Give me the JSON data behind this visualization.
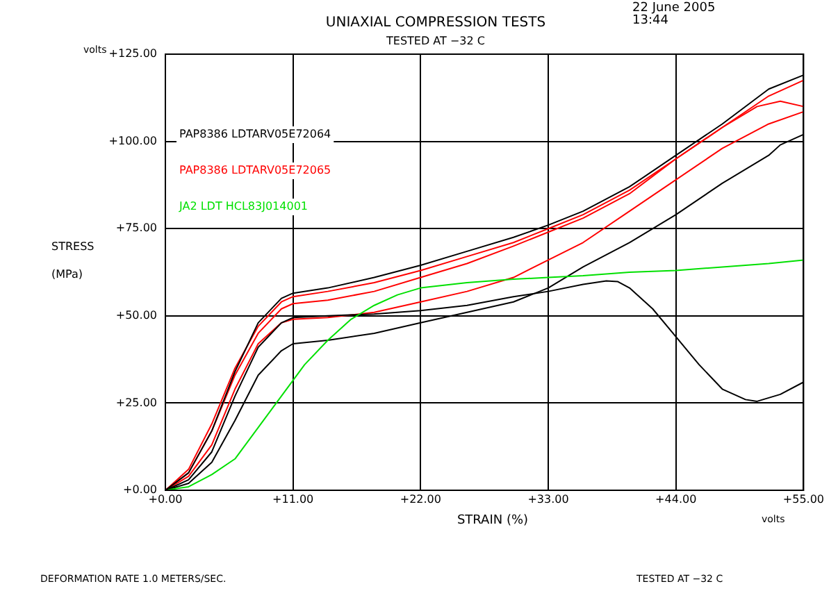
{
  "chart_data": {
    "type": "line",
    "title": "UNIAXIAL COMPRESSION TESTS",
    "subtitle": "TESTED AT −32 C",
    "xlabel": "STRAIN (%)",
    "ylabel": "STRESS (MPa)",
    "annotations": [
      "22 June 2005",
      "13:44",
      "volts",
      "volts",
      "DEFORMATION RATE 1.0 METERS/SEC.",
      "TESTED AT −32 C"
    ],
    "xlim": [
      0,
      55
    ],
    "ylim": [
      0,
      125
    ],
    "xticks": [
      {
        "value": 0,
        "label": "+0.00"
      },
      {
        "value": 11,
        "label": "+11.00"
      },
      {
        "value": 22,
        "label": "+22.00"
      },
      {
        "value": 33,
        "label": "+33.00"
      },
      {
        "value": 44,
        "label": "+44.00"
      },
      {
        "value": 55,
        "label": "+55.00"
      }
    ],
    "yticks": [
      {
        "value": 0,
        "label": "+0.00"
      },
      {
        "value": 25,
        "label": "+25.00"
      },
      {
        "value": 50,
        "label": "+50.00"
      },
      {
        "value": 75,
        "label": "+75.00"
      },
      {
        "value": 100,
        "label": "+100.00"
      },
      {
        "value": 125,
        "label": "+125.00"
      }
    ],
    "grid": true,
    "legend": "top left",
    "marker": "none",
    "line_style": "solid",
    "series": [
      {
        "name": "PAP8386 LDTARV05E72064",
        "color": "#000000",
        "x": [
          0,
          2,
          4,
          6,
          8,
          10,
          11,
          14,
          18,
          22,
          26,
          30,
          33,
          36,
          40,
          44,
          48,
          52,
          55
        ],
        "values": [
          0,
          5,
          17,
          34,
          48,
          55,
          56.5,
          58,
          61,
          64.5,
          68.5,
          72.5,
          76,
          80,
          87,
          96,
          105,
          115,
          119
        ]
      },
      {
        "name": "PAP8386 LDTARV05E72065",
        "color": "#ff0000",
        "x": [
          0,
          2,
          4,
          6,
          8,
          10,
          11,
          14,
          18,
          22,
          26,
          30,
          33,
          36,
          40,
          44,
          48,
          52,
          55
        ],
        "values": [
          0,
          6,
          19,
          35,
          47,
          54,
          55.5,
          57,
          59.5,
          63,
          67,
          71,
          75,
          79,
          86,
          95,
          104,
          113,
          117.5
        ]
      },
      {
        "name": "JA2 LDT HCL83J014001",
        "color": "#00e000",
        "x": [
          0,
          2,
          4,
          6,
          8,
          10,
          12,
          14,
          16,
          18,
          20,
          22,
          26,
          30,
          33,
          36,
          40,
          44,
          48,
          52,
          55
        ],
        "values": [
          0,
          1,
          4.5,
          9,
          18,
          27,
          36,
          43,
          49,
          53,
          56,
          58,
          59.5,
          60.5,
          61,
          61.5,
          62.5,
          63,
          64,
          65,
          66
        ]
      },
      {
        "color": "#000000",
        "x": [
          0,
          2,
          4,
          6,
          8,
          10,
          11,
          14,
          18,
          22,
          26,
          30,
          33,
          36,
          38,
          39,
          40,
          42,
          44,
          46,
          48,
          50,
          51,
          53,
          55
        ],
        "values": [
          0,
          3,
          11,
          27,
          41,
          48,
          49.5,
          50,
          50.5,
          51.5,
          53,
          55.5,
          57,
          59,
          60,
          59.8,
          58,
          52,
          44,
          36,
          29,
          26,
          25.5,
          27.5,
          31
        ]
      },
      {
        "color": "#000000",
        "x": [
          0,
          2,
          4,
          6,
          8,
          10,
          11,
          14,
          18,
          22,
          26,
          30,
          33,
          36,
          40,
          44,
          48,
          52,
          53,
          55
        ],
        "values": [
          0,
          2,
          8,
          20,
          33,
          40,
          42,
          43,
          45,
          48,
          51,
          54,
          58,
          64,
          71,
          79,
          88,
          96,
          99,
          102
        ]
      },
      {
        "color": "#ff0000",
        "x": [
          0,
          2,
          4,
          6,
          8,
          10,
          11,
          14,
          18,
          22,
          26,
          30,
          33,
          36,
          40,
          44,
          48,
          51,
          53,
          55
        ],
        "values": [
          0,
          5,
          17,
          33,
          45,
          52,
          53.5,
          54.5,
          57,
          61,
          65,
          70,
          74,
          78,
          85,
          95,
          104,
          110,
          111.5,
          110
        ]
      },
      {
        "color": "#ff0000",
        "x": [
          0,
          2,
          4,
          6,
          8,
          10,
          11,
          14,
          18,
          22,
          26,
          30,
          33,
          36,
          40,
          44,
          48,
          52,
          55
        ],
        "values": [
          0,
          4,
          13,
          29,
          42,
          48,
          49,
          49.5,
          51,
          54,
          57,
          61,
          66,
          71,
          80,
          89,
          98,
          105,
          108.5
        ]
      }
    ]
  }
}
